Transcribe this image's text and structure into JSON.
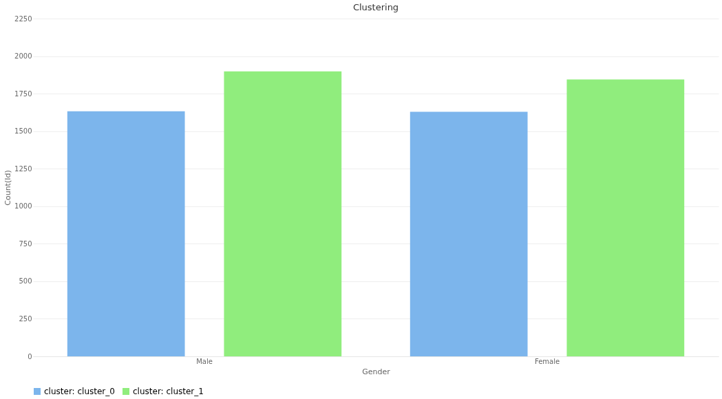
{
  "chart_data": {
    "type": "bar",
    "title": "Clustering",
    "xlabel": "Gender",
    "ylabel": "Count(Id)",
    "categories": [
      "Male",
      "Female"
    ],
    "series": [
      {
        "name": "cluster: cluster_0",
        "color": "#7cb5ec",
        "values": [
          1632,
          1629
        ]
      },
      {
        "name": "cluster: cluster_1",
        "color": "#90ed7d",
        "values": [
          1898,
          1844
        ]
      }
    ],
    "ylim": [
      0,
      2250
    ],
    "yticks": [
      0,
      250,
      500,
      750,
      1000,
      1250,
      1500,
      1750,
      2000,
      2250
    ],
    "grid": "y",
    "legend": "bottom"
  }
}
